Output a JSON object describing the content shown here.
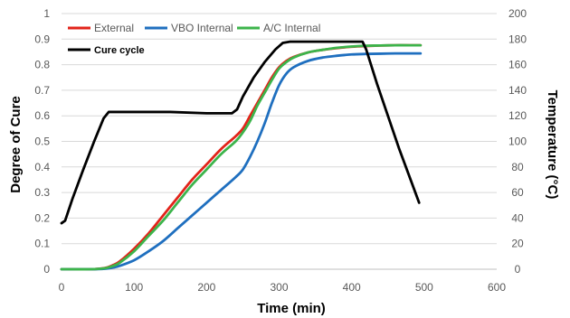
{
  "chart_data": {
    "type": "line",
    "xlabel": "Time (min)",
    "ylabel": "Degree of Cure",
    "y2label": "Temperature (°C)",
    "xlim": [
      0,
      600
    ],
    "ylim": [
      0,
      1
    ],
    "y2lim": [
      0,
      200
    ],
    "x_ticks": [
      0,
      100,
      200,
      300,
      400,
      500,
      600
    ],
    "y_ticks": [
      0,
      0.1,
      0.2,
      0.3,
      0.4,
      0.5,
      0.6,
      0.7,
      0.8,
      0.9,
      1
    ],
    "y2_ticks": [
      0,
      20,
      40,
      60,
      80,
      100,
      120,
      140,
      160,
      180,
      200
    ],
    "grid": "horizontal",
    "legend_position": "top-left",
    "series": [
      {
        "name": "External",
        "axis": "left",
        "color": "#e2231a",
        "x": [
          0,
          40,
          60,
          70,
          80,
          100,
          120,
          140,
          160,
          180,
          200,
          220,
          240,
          250,
          260,
          270,
          280,
          290,
          300,
          310,
          320,
          340,
          360,
          380,
          400,
          420,
          440,
          460,
          480,
          495
        ],
        "y": [
          0,
          0,
          0.005,
          0.015,
          0.03,
          0.08,
          0.14,
          0.21,
          0.28,
          0.35,
          0.41,
          0.47,
          0.52,
          0.55,
          0.6,
          0.65,
          0.7,
          0.75,
          0.79,
          0.815,
          0.83,
          0.848,
          0.858,
          0.865,
          0.87,
          0.873,
          0.875,
          0.876,
          0.876,
          0.876
        ]
      },
      {
        "name": "VBO Internal",
        "axis": "left",
        "color": "#1f6fbf",
        "x": [
          0,
          40,
          60,
          70,
          80,
          100,
          120,
          140,
          160,
          180,
          200,
          220,
          240,
          250,
          260,
          270,
          280,
          290,
          300,
          310,
          320,
          340,
          360,
          380,
          400,
          420,
          440,
          460,
          480,
          495
        ],
        "y": [
          0,
          0,
          0.002,
          0.006,
          0.013,
          0.035,
          0.07,
          0.11,
          0.16,
          0.21,
          0.26,
          0.31,
          0.36,
          0.39,
          0.44,
          0.5,
          0.57,
          0.65,
          0.72,
          0.765,
          0.79,
          0.815,
          0.828,
          0.835,
          0.84,
          0.842,
          0.843,
          0.844,
          0.844,
          0.844
        ]
      },
      {
        "name": "A/C Internal",
        "axis": "left",
        "color": "#3cb44b",
        "x": [
          0,
          40,
          60,
          70,
          80,
          100,
          120,
          140,
          160,
          180,
          200,
          220,
          240,
          250,
          260,
          270,
          280,
          290,
          300,
          310,
          320,
          340,
          360,
          380,
          400,
          420,
          440,
          460,
          480,
          495
        ],
        "y": [
          0,
          0,
          0.004,
          0.012,
          0.025,
          0.07,
          0.13,
          0.19,
          0.26,
          0.33,
          0.39,
          0.45,
          0.5,
          0.535,
          0.58,
          0.64,
          0.69,
          0.74,
          0.785,
          0.81,
          0.828,
          0.848,
          0.858,
          0.866,
          0.871,
          0.874,
          0.875,
          0.876,
          0.876,
          0.876
        ]
      },
      {
        "name": "Cure cycle",
        "axis": "right",
        "color": "#000000",
        "x": [
          0,
          5,
          15,
          30,
          45,
          58,
          65,
          72,
          100,
          150,
          200,
          235,
          242,
          250,
          265,
          280,
          295,
          305,
          315,
          330,
          360,
          400,
          415,
          420,
          435,
          450,
          465,
          480,
          493
        ],
        "y": [
          36,
          38,
          55,
          78,
          100,
          118,
          123,
          123,
          123,
          123,
          122,
          122,
          125,
          135,
          150,
          162,
          172,
          177,
          178,
          178,
          178,
          178,
          178,
          172,
          145,
          120,
          95,
          72,
          52
        ]
      }
    ]
  }
}
